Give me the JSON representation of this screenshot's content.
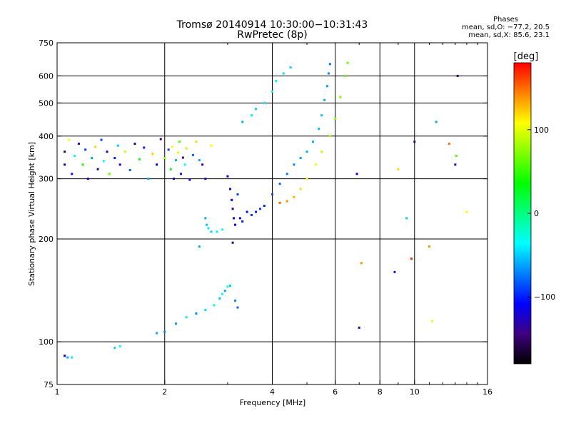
{
  "header": {
    "title": "Tromsø 20140914 10:30:00−10:31:43",
    "subtitle": "RwPretec (8p)"
  },
  "stats": {
    "heading": "Phases",
    "line1": "mean, sd,O: −77.2, 20.5",
    "line2": "mean, sd,X:  85.6, 23.1"
  },
  "colorbar": {
    "label": "[deg]",
    "ticks": [
      {
        "value": 100,
        "label": "100"
      },
      {
        "value": 0,
        "label": "0"
      },
      {
        "value": -100,
        "label": "−100"
      }
    ],
    "range": [
      -180,
      180
    ],
    "colors": [
      "#000000",
      "#400080",
      "#0000ff",
      "#0080ff",
      "#00ffff",
      "#00ff80",
      "#00ff00",
      "#80ff00",
      "#ffff00",
      "#ff8000",
      "#ff0000"
    ]
  },
  "chart_data": {
    "type": "scatter",
    "xlabel": "Frequency [MHz]",
    "ylabel": "Stationary phase Virtual Height [km]",
    "xscale": "log",
    "yscale": "log",
    "xlim": [
      1,
      16
    ],
    "ylim": [
      75,
      750
    ],
    "xticks": [
      {
        "value": 1,
        "label": "1"
      },
      {
        "value": 2,
        "label": "2"
      },
      {
        "value": 4,
        "label": "4"
      },
      {
        "value": 6,
        "label": "6"
      },
      {
        "value": 8,
        "label": "8"
      },
      {
        "value": 10,
        "label": "10"
      },
      {
        "value": 16,
        "label": "16"
      }
    ],
    "yticks": [
      {
        "value": 75,
        "label": "75"
      },
      {
        "value": 100,
        "label": "100"
      },
      {
        "value": 200,
        "label": "200"
      },
      {
        "value": 300,
        "label": "300"
      },
      {
        "value": 400,
        "label": "400"
      },
      {
        "value": 500,
        "label": "500"
      },
      {
        "value": 600,
        "label": "600"
      },
      {
        "value": 750,
        "label": "750"
      }
    ],
    "grid_x": [
      2,
      4,
      6,
      8,
      10
    ],
    "grid_y": [
      100,
      200,
      300,
      400,
      500,
      600
    ],
    "points": [
      [
        1.05,
        91,
        -110
      ],
      [
        1.07,
        90,
        -60
      ],
      [
        1.1,
        90,
        -40
      ],
      [
        1.45,
        96,
        -50
      ],
      [
        1.5,
        97,
        -30
      ],
      [
        1.9,
        106,
        -60
      ],
      [
        2.0,
        107,
        -70
      ],
      [
        2.15,
        113,
        -65
      ],
      [
        2.3,
        118,
        -40
      ],
      [
        2.45,
        121,
        -70
      ],
      [
        2.6,
        124,
        -45
      ],
      [
        2.75,
        128,
        -30
      ],
      [
        2.85,
        134,
        -55
      ],
      [
        2.9,
        138,
        -35
      ],
      [
        2.95,
        141,
        -60
      ],
      [
        3.0,
        145,
        -20
      ],
      [
        3.05,
        146,
        -50
      ],
      [
        3.15,
        132,
        -70
      ],
      [
        3.2,
        126,
        -80
      ],
      [
        1.05,
        330,
        -120
      ],
      [
        1.05,
        360,
        -150
      ],
      [
        1.08,
        390,
        110
      ],
      [
        1.1,
        310,
        -100
      ],
      [
        1.12,
        350,
        -30
      ],
      [
        1.15,
        380,
        -140
      ],
      [
        1.18,
        330,
        40
      ],
      [
        1.2,
        365,
        -90
      ],
      [
        1.22,
        300,
        -120
      ],
      [
        1.25,
        345,
        -60
      ],
      [
        1.28,
        372,
        120
      ],
      [
        1.3,
        320,
        -150
      ],
      [
        1.33,
        390,
        -90
      ],
      [
        1.35,
        338,
        -40
      ],
      [
        1.38,
        360,
        -130
      ],
      [
        1.4,
        310,
        60
      ],
      [
        1.45,
        345,
        -100
      ],
      [
        1.48,
        375,
        -50
      ],
      [
        1.5,
        330,
        -120
      ],
      [
        1.55,
        360,
        90
      ],
      [
        1.6,
        318,
        -80
      ],
      [
        1.65,
        380,
        -130
      ],
      [
        1.7,
        342,
        40
      ],
      [
        1.75,
        370,
        -100
      ],
      [
        1.8,
        300,
        -60
      ],
      [
        1.85,
        355,
        120
      ],
      [
        1.9,
        330,
        -110
      ],
      [
        1.95,
        392,
        -140
      ],
      [
        2.0,
        345,
        80
      ],
      [
        2.05,
        365,
        -90
      ],
      [
        2.08,
        320,
        30
      ],
      [
        2.1,
        372,
        110
      ],
      [
        2.12,
        300,
        -120
      ],
      [
        2.15,
        340,
        -60
      ],
      [
        2.18,
        358,
        100
      ],
      [
        2.2,
        385,
        60
      ],
      [
        2.22,
        310,
        -100
      ],
      [
        2.25,
        346,
        -130
      ],
      [
        2.28,
        330,
        -30
      ],
      [
        2.3,
        368,
        90
      ],
      [
        2.35,
        298,
        -110
      ],
      [
        2.4,
        352,
        -80
      ],
      [
        2.45,
        385,
        120
      ],
      [
        2.5,
        340,
        -60
      ],
      [
        2.55,
        330,
        -130
      ],
      [
        2.6,
        300,
        -120
      ],
      [
        2.7,
        375,
        110
      ],
      [
        2.5,
        190,
        -60
      ],
      [
        2.6,
        230,
        -60
      ],
      [
        2.62,
        220,
        -50
      ],
      [
        2.65,
        215,
        -40
      ],
      [
        2.7,
        210,
        -50
      ],
      [
        2.8,
        210,
        -40
      ],
      [
        2.9,
        213,
        -35
      ],
      [
        3.0,
        305,
        -110
      ],
      [
        3.05,
        280,
        -120
      ],
      [
        3.08,
        260,
        -110
      ],
      [
        3.1,
        245,
        -130
      ],
      [
        3.12,
        230,
        -120
      ],
      [
        3.15,
        220,
        -110
      ],
      [
        3.1,
        195,
        -140
      ],
      [
        3.2,
        270,
        -90
      ],
      [
        3.25,
        230,
        -110
      ],
      [
        3.3,
        225,
        -100
      ],
      [
        3.4,
        240,
        -105
      ],
      [
        3.5,
        235,
        -95
      ],
      [
        3.6,
        240,
        -100
      ],
      [
        3.7,
        245,
        -90
      ],
      [
        3.8,
        250,
        -100
      ],
      [
        4.0,
        270,
        -85
      ],
      [
        4.2,
        290,
        -80
      ],
      [
        4.4,
        310,
        -75
      ],
      [
        4.6,
        330,
        -70
      ],
      [
        4.8,
        345,
        -65
      ],
      [
        5.0,
        360,
        -60
      ],
      [
        5.2,
        385,
        -60
      ],
      [
        5.4,
        420,
        -55
      ],
      [
        5.5,
        460,
        -55
      ],
      [
        5.6,
        510,
        -60
      ],
      [
        5.7,
        560,
        -65
      ],
      [
        5.75,
        610,
        -70
      ],
      [
        5.8,
        650,
        -75
      ],
      [
        3.3,
        440,
        -60
      ],
      [
        3.5,
        460,
        -40
      ],
      [
        3.6,
        480,
        -50
      ],
      [
        3.8,
        500,
        -40
      ],
      [
        4.0,
        540,
        -35
      ],
      [
        4.1,
        580,
        -40
      ],
      [
        4.3,
        610,
        -45
      ],
      [
        4.5,
        635,
        -50
      ],
      [
        4.2,
        255,
        150
      ],
      [
        4.4,
        258,
        140
      ],
      [
        4.6,
        265,
        130
      ],
      [
        4.8,
        280,
        120
      ],
      [
        5.0,
        300,
        110
      ],
      [
        5.3,
        330,
        100
      ],
      [
        5.5,
        360,
        90
      ],
      [
        5.8,
        400,
        80
      ],
      [
        6.0,
        450,
        75
      ],
      [
        6.2,
        520,
        70
      ],
      [
        6.4,
        600,
        65
      ],
      [
        6.5,
        655,
        60
      ],
      [
        6.9,
        310,
        -120
      ],
      [
        7.0,
        110,
        -140
      ],
      [
        7.1,
        170,
        140
      ],
      [
        8.8,
        160,
        -100
      ],
      [
        9.0,
        320,
        120
      ],
      [
        9.5,
        230,
        -50
      ],
      [
        9.8,
        175,
        170
      ],
      [
        10.0,
        385,
        -150
      ],
      [
        11.0,
        190,
        140
      ],
      [
        11.2,
        115,
        100
      ],
      [
        11.5,
        440,
        -60
      ],
      [
        12.5,
        380,
        150
      ],
      [
        13.0,
        330,
        -130
      ],
      [
        13.1,
        350,
        60
      ],
      [
        13.2,
        600,
        -150
      ],
      [
        14.0,
        240,
        110
      ]
    ]
  }
}
